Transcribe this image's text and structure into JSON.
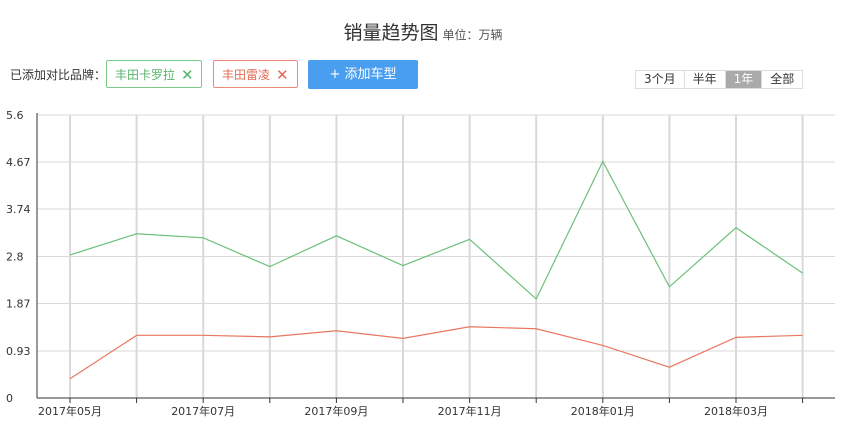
{
  "header": {
    "title": "销量趋势图",
    "unit": "单位：万辆"
  },
  "compare": {
    "label": "已添加对比品牌：",
    "tags": [
      {
        "label": "丰田卡罗拉",
        "color": "#6cc07a",
        "remove_icon": "close-icon"
      },
      {
        "label": "丰田雷凌",
        "color": "#e8775f",
        "remove_icon": "close-icon"
      }
    ],
    "add_button": "+ 添加车型"
  },
  "ranges": {
    "options": [
      "3个月",
      "半年",
      "1年",
      "全部"
    ],
    "active": "1年"
  },
  "chart_data": {
    "type": "line",
    "categories": [
      "2017年05月",
      "2017年06月",
      "2017年07月",
      "2017年08月",
      "2017年09月",
      "2017年10月",
      "2017年11月",
      "2017年12月",
      "2018年01月",
      "2018年02月",
      "2018年03月",
      "2018年04月"
    ],
    "x_tick_labels": [
      "2017年05月",
      "2017年07月",
      "2017年09月",
      "2017年11月",
      "2018年01月",
      "2018年03月"
    ],
    "y_ticks": [
      "0",
      "0.93",
      "1.87",
      "2.8",
      "3.74",
      "4.67",
      "5.6"
    ],
    "ylim": [
      0,
      5.6
    ],
    "grid": true,
    "series": [
      {
        "name": "丰田卡罗拉",
        "color": "#6cc07a",
        "values": [
          2.83,
          3.25,
          3.17,
          2.6,
          3.21,
          2.62,
          3.14,
          1.96,
          4.68,
          2.2,
          3.37,
          2.47
        ]
      },
      {
        "name": "丰田雷凌",
        "color": "#e8775f",
        "values": [
          0.38,
          1.24,
          1.24,
          1.21,
          1.33,
          1.18,
          1.41,
          1.37,
          1.04,
          0.61,
          1.2,
          1.24
        ]
      }
    ]
  }
}
